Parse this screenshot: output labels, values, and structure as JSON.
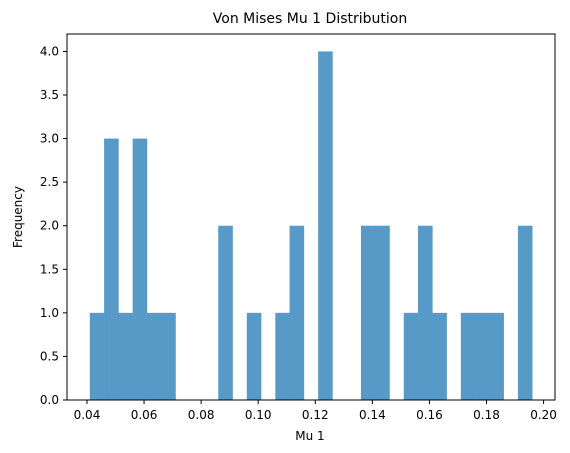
{
  "chart_data": {
    "type": "bar",
    "title": "Von Mises Mu 1 Distribution",
    "xlabel": "Mu 1",
    "ylabel": "Frequency",
    "xlim": [
      0.033,
      0.204
    ],
    "ylim": [
      0,
      4.2
    ],
    "color": "#5799c7",
    "grid": false,
    "legend": "none",
    "x_ticks": [
      {
        "value": 0.04,
        "label": "0.04"
      },
      {
        "value": 0.06,
        "label": "0.06"
      },
      {
        "value": 0.08,
        "label": "0.08"
      },
      {
        "value": 0.1,
        "label": "0.10"
      },
      {
        "value": 0.12,
        "label": "0.12"
      },
      {
        "value": 0.14,
        "label": "0.14"
      },
      {
        "value": 0.16,
        "label": "0.16"
      },
      {
        "value": 0.18,
        "label": "0.18"
      },
      {
        "value": 0.2,
        "label": "0.20"
      }
    ],
    "y_ticks": [
      {
        "value": 0.0,
        "label": "0.0"
      },
      {
        "value": 0.5,
        "label": "0.5"
      },
      {
        "value": 1.0,
        "label": "1.0"
      },
      {
        "value": 1.5,
        "label": "1.5"
      },
      {
        "value": 2.0,
        "label": "2.0"
      },
      {
        "value": 2.5,
        "label": "2.5"
      },
      {
        "value": 3.0,
        "label": "3.0"
      },
      {
        "value": 3.5,
        "label": "3.5"
      },
      {
        "value": 4.0,
        "label": "4.0"
      }
    ],
    "bin_edges": [
      0.041,
      0.046,
      0.051,
      0.056,
      0.061,
      0.066,
      0.071,
      0.076,
      0.081,
      0.086,
      0.091,
      0.096,
      0.101,
      0.106,
      0.111,
      0.116,
      0.121,
      0.126,
      0.131,
      0.136,
      0.141,
      0.146,
      0.151,
      0.156,
      0.161,
      0.166,
      0.171,
      0.176,
      0.181,
      0.186,
      0.191,
      0.196
    ],
    "counts": [
      1,
      3,
      1,
      3,
      1,
      1,
      0,
      0,
      0,
      2,
      0,
      1,
      0,
      1,
      2,
      0,
      4,
      0,
      0,
      2,
      2,
      0,
      1,
      2,
      1,
      0,
      1,
      1,
      1,
      0,
      2
    ]
  }
}
